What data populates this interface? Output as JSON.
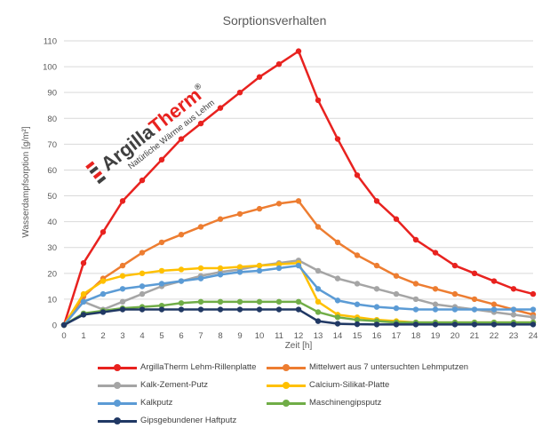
{
  "chart_data": {
    "type": "line",
    "title": "Sorptionsverhalten",
    "xlabel": "Zeit [h]",
    "ylabel": "Wasserdampfsorption [g/m²]",
    "x": [
      0,
      1,
      2,
      3,
      4,
      5,
      6,
      7,
      8,
      9,
      10,
      11,
      12,
      13,
      14,
      15,
      16,
      17,
      18,
      19,
      20,
      21,
      22,
      23,
      24
    ],
    "xlim": [
      0,
      24
    ],
    "ylim": [
      0,
      110
    ],
    "yticks": [
      0,
      10,
      20,
      30,
      40,
      50,
      60,
      70,
      80,
      90,
      100,
      110
    ],
    "grid": "horizontal",
    "legend_position": "bottom",
    "series": [
      {
        "name": "ArgillaTherm Lehm-Rillenplatte",
        "color": "#e8221f",
        "values": [
          0,
          24,
          36,
          48,
          56,
          64,
          72,
          78,
          84,
          90,
          96,
          101,
          106,
          87,
          72,
          58,
          48,
          41,
          33,
          28,
          23,
          20,
          17,
          14,
          12
        ]
      },
      {
        "name": "Mittelwert aus 7 untersuchten Lehmputzen",
        "color": "#ed7d31",
        "values": [
          0,
          11,
          18,
          23,
          28,
          32,
          35,
          38,
          41,
          43,
          45,
          47,
          48,
          38,
          32,
          27,
          23,
          19,
          16,
          14,
          12,
          10,
          8,
          6,
          4
        ]
      },
      {
        "name": "Kalk-Zement-Putz",
        "color": "#a5a5a5",
        "values": [
          0,
          9,
          6,
          9,
          12,
          15,
          17,
          19,
          20.5,
          21.5,
          23,
          24,
          25,
          21,
          18,
          16,
          14,
          12,
          10,
          8,
          7,
          6,
          5,
          4,
          3
        ]
      },
      {
        "name": "Calcium-Silikat-Platte",
        "color": "#ffc000",
        "values": [
          0,
          12,
          17,
          19,
          20,
          21,
          21.5,
          22,
          22,
          22.5,
          23,
          23.5,
          24,
          9,
          4,
          3,
          2,
          1.5,
          1,
          1,
          1,
          1,
          1,
          1,
          1
        ]
      },
      {
        "name": "Kalkputz",
        "color": "#5b9bd5",
        "values": [
          0,
          9,
          12,
          14,
          15,
          16,
          17,
          18,
          19.5,
          20.5,
          21,
          22,
          23,
          14,
          9.5,
          8,
          7,
          6.5,
          6,
          6,
          6,
          6,
          6,
          6,
          6
        ]
      },
      {
        "name": "Maschinengipsputz",
        "color": "#70ad47",
        "values": [
          0,
          4.5,
          5.5,
          6.5,
          7,
          7.5,
          8.5,
          9,
          9,
          9,
          9,
          9,
          9,
          5,
          3,
          2,
          1.5,
          1,
          1,
          1,
          1,
          1,
          1,
          1,
          1
        ]
      },
      {
        "name": "Gipsgebundener Haftputz",
        "color": "#203864",
        "values": [
          0,
          4,
          5,
          6,
          6,
          6,
          6,
          6,
          6,
          6,
          6,
          6,
          6,
          1.5,
          0.5,
          0.3,
          0.2,
          0.2,
          0.2,
          0.2,
          0.2,
          0.2,
          0.2,
          0.2,
          0.2
        ]
      }
    ]
  },
  "logo": {
    "brand_part1": "Argilla",
    "brand_part2": "Therm",
    "registered": "®",
    "tagline": "Natürliche Wärme aus Lehm",
    "color_dark": "#404040",
    "color_accent": "#e8221f"
  }
}
